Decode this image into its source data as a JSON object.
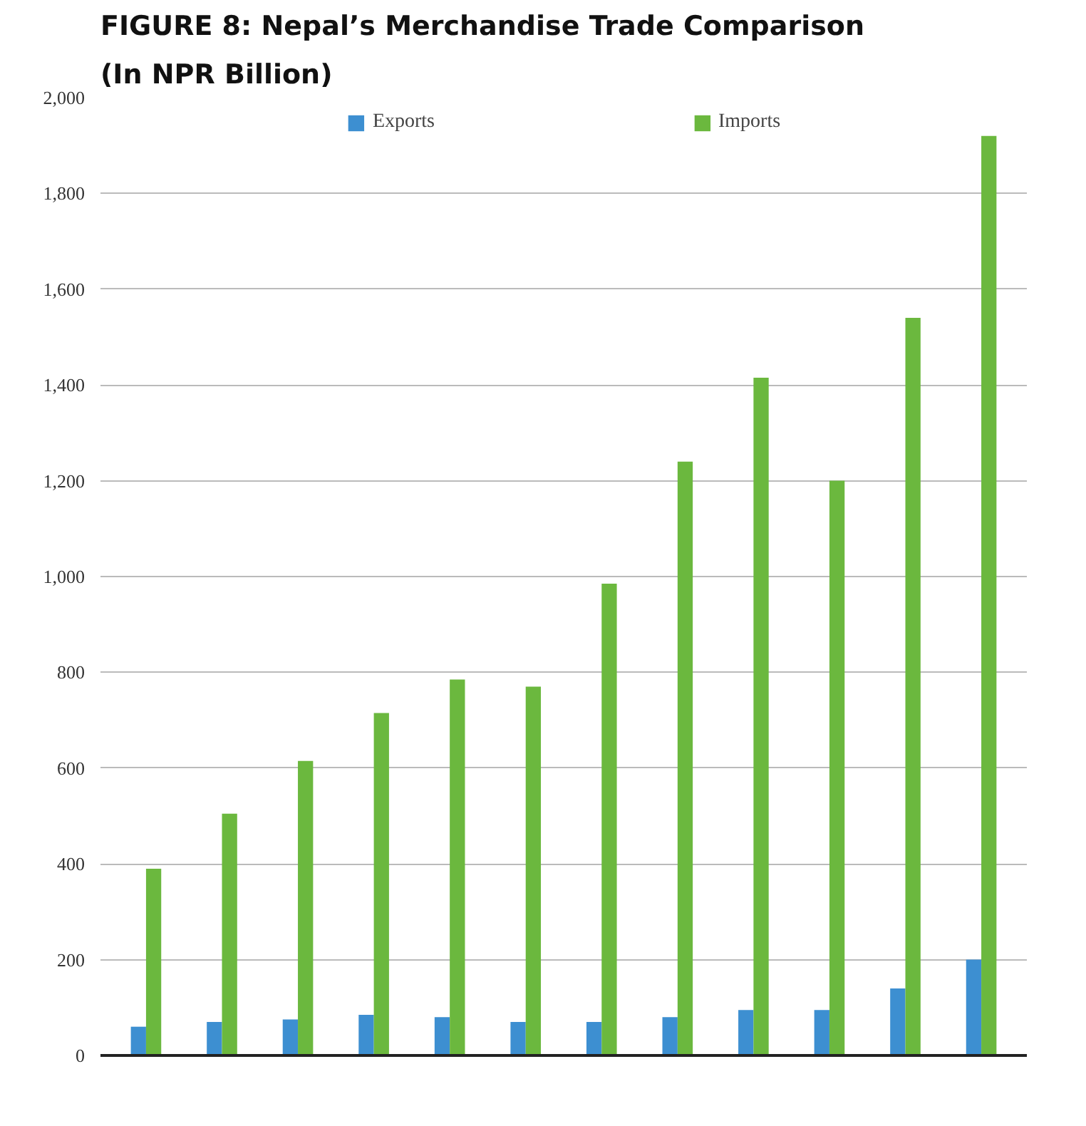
{
  "chart_data": {
    "type": "bar",
    "title": "FIGURE 8: Nepal’s Merchandise Trade Comparison",
    "subtitle": "(In NPR Billion)",
    "categories": [
      null,
      null,
      null,
      null,
      null,
      null,
      null,
      null,
      null,
      null,
      null,
      null
    ],
    "series": [
      {
        "name": "Exports",
        "color": "#3d8fd1",
        "values": [
          60,
          70,
          75,
          85,
          80,
          70,
          70,
          80,
          95,
          95,
          140,
          200
        ]
      },
      {
        "name": "Imports",
        "color": "#6bb83e",
        "values": [
          390,
          505,
          615,
          715,
          785,
          770,
          985,
          1240,
          1415,
          1200,
          1540,
          1920
        ]
      }
    ],
    "ylim": [
      0,
      2000
    ],
    "yticks": [
      0,
      {
        "value": 200,
        "label": "200"
      },
      {
        "value": 400,
        "label": "400"
      },
      {
        "value": 600,
        "label": "600"
      },
      {
        "value": 800,
        "label": "800"
      },
      {
        "value": 1000,
        "label": "1,000"
      },
      {
        "value": 1200,
        "label": "1,200"
      },
      {
        "value": 1400,
        "label": "1,400"
      },
      {
        "value": 1600,
        "label": "1,600"
      },
      {
        "value": 1800,
        "label": "1,800"
      },
      {
        "value": 2000,
        "label": "2,000"
      }
    ],
    "grid": "y",
    "legend": "top",
    "tick_labels": "y"
  }
}
